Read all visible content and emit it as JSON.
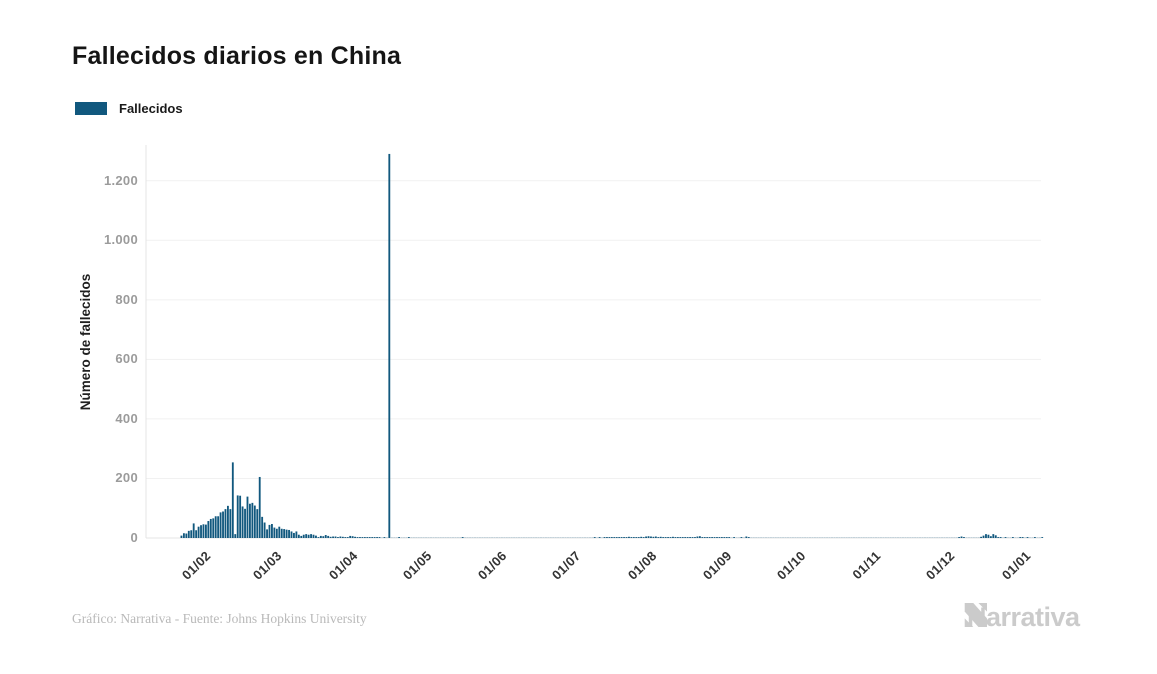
{
  "page": {
    "title": "Fallecidos diarios en China",
    "legend": {
      "label": "Fallecidos",
      "swatch_color": "#11587E"
    },
    "footer": {
      "credit": "Gráfico: Narrativa - Fuente: Johns Hopkins University",
      "brand": "Narrativa"
    }
  },
  "chart_data": {
    "type": "bar",
    "title": "Fallecidos diarios en China",
    "xlabel": "",
    "ylabel": "Número de fallecidos",
    "legend_position": "top-left",
    "grid": "horizontal",
    "bar_color": "#11587E",
    "ylim": [
      0,
      1320
    ],
    "y_ticks": [
      {
        "label": "0",
        "value": 0
      },
      {
        "label": "200",
        "value": 200
      },
      {
        "label": "400",
        "value": 400
      },
      {
        "label": "600",
        "value": 600
      },
      {
        "label": "800",
        "value": 800
      },
      {
        "label": "1.000",
        "value": 1000
      },
      {
        "label": "1.200",
        "value": 1200
      }
    ],
    "x_tick_labels": [
      "01/02",
      "01/03",
      "01/04",
      "01/05",
      "01/06",
      "01/07",
      "01/08",
      "01/09",
      "01/10",
      "01/11",
      "01/12",
      "01/01"
    ],
    "x_tick_day_index": [
      9,
      38,
      69,
      99,
      130,
      160,
      191,
      222,
      252,
      283,
      313,
      344
    ],
    "start_date": "23/01/2020",
    "end_date": "09/01/2021",
    "max_value": 1290,
    "max_value_date": "17/04/2020",
    "series": [
      {
        "name": "Fallecidos",
        "values": [
          8,
          16,
          15,
          24,
          26,
          49,
          26,
          38,
          43,
          46,
          45,
          57,
          64,
          66,
          73,
          73,
          86,
          89,
          97,
          108,
          97,
          254,
          13,
          143,
          142,
          106,
          98,
          139,
          115,
          118,
          109,
          97,
          205,
          71,
          52,
          29,
          44,
          47,
          35,
          31,
          38,
          31,
          30,
          28,
          27,
          22,
          17,
          22,
          11,
          7,
          11,
          13,
          11,
          13,
          11,
          8,
          3,
          7,
          6,
          10,
          7,
          4,
          5,
          5,
          3,
          5,
          4,
          2,
          1,
          7,
          6,
          4,
          3,
          2,
          1,
          2,
          2,
          1,
          2,
          1,
          1,
          1,
          0,
          1,
          0,
          1290,
          0,
          0,
          0,
          1,
          0,
          0,
          0,
          1,
          0,
          0,
          0,
          0,
          0,
          0,
          0,
          0,
          0,
          0,
          0,
          0,
          0,
          0,
          0,
          0,
          0,
          0,
          0,
          0,
          0,
          1,
          0,
          0,
          0,
          0,
          0,
          0,
          0,
          0,
          0,
          0,
          0,
          0,
          0,
          0,
          0,
          0,
          0,
          0,
          0,
          0,
          0,
          0,
          0,
          0,
          0,
          0,
          0,
          0,
          0,
          0,
          0,
          0,
          0,
          0,
          0,
          0,
          0,
          0,
          0,
          0,
          0,
          0,
          0,
          0,
          0,
          0,
          0,
          0,
          0,
          0,
          0,
          0,
          0,
          1,
          0,
          1,
          0,
          2,
          1,
          1,
          2,
          1,
          3,
          2,
          2,
          3,
          2,
          4,
          2,
          3,
          2,
          3,
          4,
          3,
          5,
          6,
          5,
          4,
          5,
          3,
          4,
          3,
          2,
          3,
          2,
          4,
          3,
          2,
          3,
          2,
          1,
          2,
          3,
          2,
          2,
          5,
          6,
          3,
          2,
          2,
          1,
          2,
          1,
          2,
          1,
          1,
          2,
          1,
          1,
          0,
          1,
          0,
          0,
          1,
          0,
          5,
          1,
          0,
          0,
          0,
          0,
          0,
          0,
          0,
          0,
          0,
          0,
          0,
          0,
          0,
          0,
          0,
          0,
          0,
          0,
          0,
          0,
          0,
          0,
          0,
          0,
          0,
          0,
          0,
          0,
          0,
          0,
          0,
          0,
          0,
          0,
          0,
          0,
          0,
          0,
          0,
          0,
          0,
          0,
          0,
          0,
          0,
          0,
          0,
          0,
          0,
          0,
          0,
          0,
          0,
          0,
          0,
          0,
          0,
          0,
          0,
          0,
          0,
          0,
          0,
          0,
          0,
          0,
          0,
          0,
          0,
          0,
          0,
          0,
          0,
          0,
          0,
          0,
          0,
          0,
          0,
          0,
          0,
          0,
          0,
          0,
          0,
          3,
          5,
          2,
          0,
          0,
          0,
          0,
          0,
          0,
          4,
          8,
          13,
          11,
          6,
          13,
          9,
          2,
          1,
          0,
          1,
          0,
          0,
          1,
          0,
          0,
          1,
          1,
          0,
          1,
          0,
          0,
          1,
          0,
          0,
          1
        ]
      }
    ]
  }
}
